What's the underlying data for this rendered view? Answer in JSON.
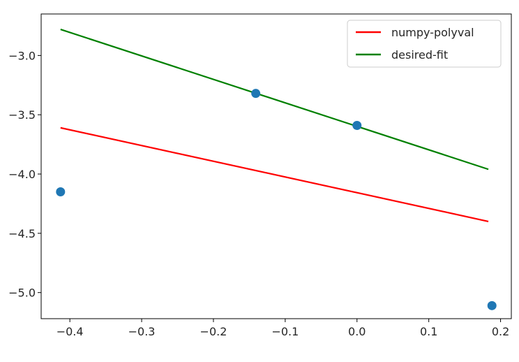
{
  "chart_data": {
    "type": "line",
    "xlim": [
      -0.44,
      0.215
    ],
    "ylim": [
      -5.22,
      -2.65
    ],
    "xticks": [
      -0.4,
      -0.3,
      -0.2,
      -0.1,
      0.0,
      0.1,
      0.2
    ],
    "xtick_labels": [
      "−0.4",
      "−0.3",
      "−0.2",
      "−0.1",
      "0.0",
      "0.1",
      "0.2"
    ],
    "yticks": [
      -3.0,
      -3.5,
      -4.0,
      -4.5,
      -5.0
    ],
    "ytick_labels": [
      "−3.0",
      "−3.5",
      "−4.0",
      "−4.5",
      "−5.0"
    ],
    "grid": false,
    "legend_position": "top-right",
    "series": [
      {
        "name": "numpy-polyval",
        "kind": "line",
        "color": "#ff0000",
        "x": [
          -0.413,
          0.183
        ],
        "y": [
          -3.61,
          -4.4
        ]
      },
      {
        "name": "desired-fit",
        "kind": "line",
        "color": "#008000",
        "x": [
          -0.413,
          0.183
        ],
        "y": [
          -2.78,
          -3.96
        ]
      }
    ],
    "points": {
      "kind": "scatter",
      "color": "#1f77b4",
      "x": [
        -0.413,
        -0.141,
        0.0,
        0.188
      ],
      "y": [
        -4.15,
        -3.32,
        -3.59,
        -5.11
      ]
    }
  }
}
